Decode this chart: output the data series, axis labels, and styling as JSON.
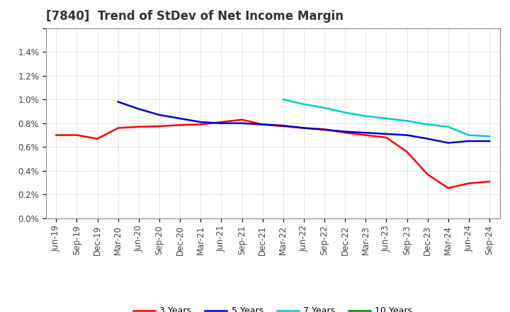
{
  "title": "[7840]  Trend of StDev of Net Income Margin",
  "ylim": [
    0.0,
    0.016
  ],
  "yticks": [
    0.0,
    0.002,
    0.004,
    0.006,
    0.008,
    0.01,
    0.012,
    0.014,
    0.016
  ],
  "ytick_labels": [
    "0.0%",
    "0.2%",
    "0.4%",
    "0.6%",
    "0.8%",
    "1.0%",
    "1.2%",
    "1.4%",
    ""
  ],
  "x_labels": [
    "Jun-19",
    "Sep-19",
    "Dec-19",
    "Mar-20",
    "Jun-20",
    "Sep-20",
    "Dec-20",
    "Mar-21",
    "Jun-21",
    "Sep-21",
    "Dec-21",
    "Mar-22",
    "Jun-22",
    "Sep-22",
    "Dec-22",
    "Mar-23",
    "Jun-23",
    "Sep-23",
    "Dec-23",
    "Mar-24",
    "Jun-24",
    "Sep-24"
  ],
  "series": {
    "3 Years": {
      "color": "#ff0000",
      "values": [
        0.007,
        0.007,
        0.0067,
        0.0076,
        0.0077,
        0.00775,
        0.00785,
        0.0079,
        0.0081,
        0.0083,
        0.0079,
        0.00775,
        0.0076,
        0.0075,
        0.0072,
        0.007,
        0.0068,
        0.0056,
        0.0037,
        0.00255,
        0.00295,
        0.0031
      ]
    },
    "5 Years": {
      "color": "#0000cc",
      "values": [
        null,
        null,
        null,
        0.0098,
        0.0092,
        0.0087,
        0.0084,
        0.0081,
        0.008,
        0.008,
        0.0079,
        0.0078,
        0.0076,
        0.00745,
        0.0073,
        0.0072,
        0.0071,
        0.007,
        0.0067,
        0.00635,
        0.0065,
        0.0065
      ]
    },
    "7 Years": {
      "color": "#00cccc",
      "values": [
        null,
        null,
        null,
        null,
        null,
        null,
        null,
        null,
        null,
        null,
        null,
        0.01,
        0.0096,
        0.0093,
        0.0089,
        0.0086,
        0.0084,
        0.0082,
        0.0079,
        0.0077,
        0.007,
        0.0069
      ]
    },
    "10 Years": {
      "color": "#008000",
      "values": [
        null,
        null,
        null,
        null,
        null,
        null,
        null,
        null,
        null,
        null,
        null,
        null,
        null,
        null,
        null,
        null,
        null,
        null,
        null,
        null,
        null,
        null
      ]
    }
  },
  "legend_labels": [
    "3 Years",
    "5 Years",
    "7 Years",
    "10 Years"
  ],
  "background_color": "#ffffff",
  "grid_color": "#b0b0b0",
  "title_fontsize": 12,
  "tick_fontsize": 8.5
}
